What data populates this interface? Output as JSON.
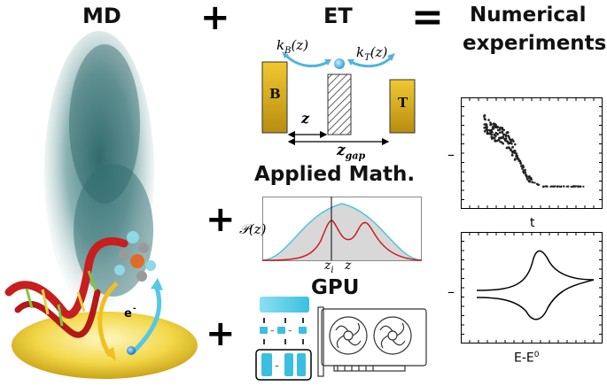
{
  "headers": {
    "md": "MD",
    "et": "ET",
    "numerical_line1": "Numerical",
    "numerical_line2": "experiments",
    "applied_math": "Applied Math.",
    "gpu": "GPU"
  },
  "operators": {
    "plus": "+",
    "equals": "="
  },
  "md_panel": {
    "electron_label": "e⁻",
    "electron_base": "e",
    "electron_sup": "-"
  },
  "et_diagram": {
    "kB_label": "k_B(z)",
    "kT_label": "k_T(z)",
    "left_electrode": "B",
    "right_electrode": "T",
    "z_label": "z",
    "zgap_label": "z_gap",
    "electrode_color": "#e3b51c",
    "arrow_color": "#4fb3e0"
  },
  "applied_math_plot": {
    "ylabel": "𝒫(z)",
    "zi_label": "z_i",
    "z_label": "z",
    "gray_curve_color": "#4fc4dc",
    "red_curve_color": "#c82020"
  },
  "gpu_panel": {
    "minus": "−"
  },
  "chart_data": [
    {
      "type": "scatter",
      "title": "",
      "xlabel": "t",
      "ylabel": "",
      "ytick_label": "–",
      "description_points": "decay from high scattered values to a flat plateau",
      "x": [
        0.05,
        0.1,
        0.15,
        0.2,
        0.25,
        0.3,
        0.35,
        0.4,
        0.45,
        0.5,
        0.6,
        0.7,
        0.8,
        0.9,
        1.0
      ],
      "y": [
        0.72,
        0.66,
        0.62,
        0.6,
        0.56,
        0.5,
        0.4,
        0.28,
        0.17,
        0.1,
        0.05,
        0.05,
        0.05,
        0.05,
        0.05
      ]
    },
    {
      "type": "line",
      "title": "",
      "xlabel": "E-E",
      "xlabel_sup": "0",
      "ylabel": "",
      "ytick_label": "–"
    }
  ]
}
